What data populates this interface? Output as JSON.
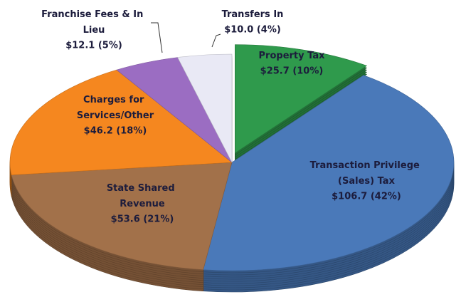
{
  "chart_data": {
    "type": "pie",
    "categories": [
      "Property Tax",
      "Transaction Privilege (Sales) Tax",
      "State Shared Revenue",
      "Charges for Services/Other",
      "Franchise Fees & In Lieu",
      "Transfers In"
    ],
    "values": [
      25.7,
      106.7,
      53.6,
      46.2,
      12.1,
      10.0
    ],
    "value_labels": [
      "$25.7 (10%)",
      "$106.7 (42%)",
      "$53.6 (21%)",
      "$46.2 (18%)",
      "$12.1 (5%)",
      "$10.0 (4%)"
    ],
    "colors": [
      "#2f9a4c",
      "#4a79b9",
      "#a2714a",
      "#f5871f",
      "#9b6dc2",
      "#e9e9f5"
    ]
  }
}
